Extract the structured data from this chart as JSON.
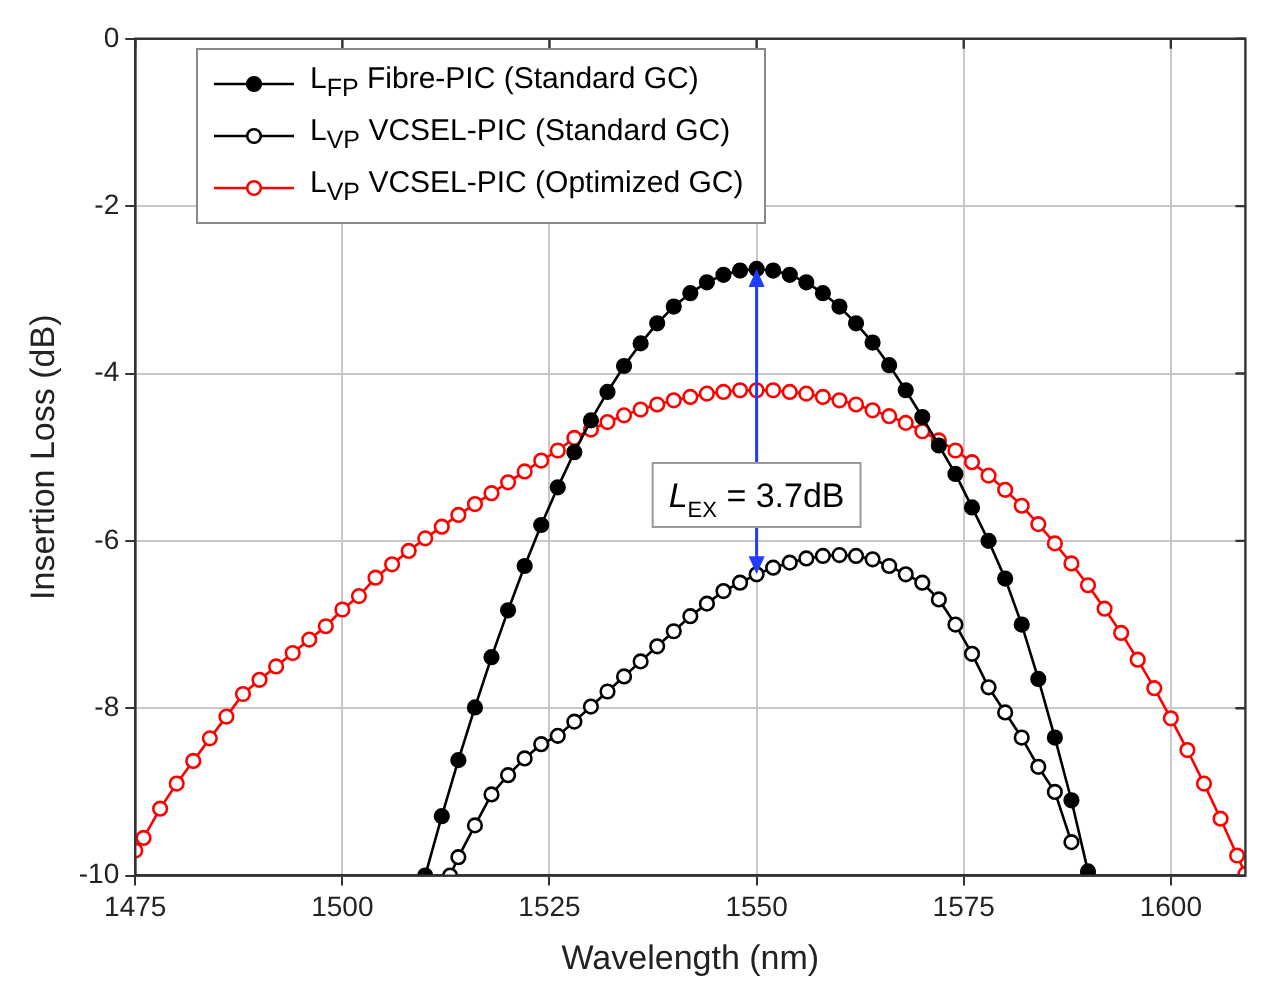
{
  "chart_data": {
    "type": "line",
    "xlabel": "Wavelength (nm)",
    "ylabel": "Insertion Loss (dB)",
    "xlim": [
      1475,
      1609
    ],
    "xticks": [
      1475,
      1500,
      1525,
      1550,
      1575,
      1600
    ],
    "ylim": [
      -10,
      0
    ],
    "yticks": [
      -10,
      -8,
      -6,
      -4,
      -2,
      0
    ],
    "grid": true,
    "legend": "top left",
    "marker": "circle",
    "line_style": "solid",
    "annotations": [
      {
        "text": "L$_{EX}$ = 3.7dB",
        "x": 1550,
        "y": -2.75
      }
    ],
    "series": [
      {
        "name": "L$_{FP}$ Fibre-PIC (Standard GC)",
        "color": "#000000",
        "x": [
          1510,
          1512,
          1514,
          1516,
          1518,
          1520,
          1522,
          1524,
          1526,
          1528,
          1530,
          1532,
          1534,
          1536,
          1538,
          1540,
          1542,
          1544,
          1546,
          1548,
          1550,
          1552,
          1554,
          1556,
          1558,
          1560,
          1562,
          1564,
          1566,
          1568,
          1570,
          1572,
          1574,
          1576,
          1578,
          1580,
          1582,
          1584,
          1586,
          1588,
          1590
        ],
        "values": [
          -10.0,
          -9.29,
          -8.62,
          -7.99,
          -7.39,
          -6.83,
          -6.3,
          -5.81,
          -5.36,
          -4.94,
          -4.56,
          -4.22,
          -3.91,
          -3.64,
          -3.4,
          -3.2,
          -3.04,
          -2.91,
          -2.82,
          -2.77,
          -2.75,
          -2.77,
          -2.82,
          -2.91,
          -3.04,
          -3.2,
          -3.4,
          -3.63,
          -3.9,
          -4.2,
          -4.52,
          -4.86,
          -5.2,
          -5.6,
          -6.0,
          -6.45,
          -7.0,
          -7.65,
          -8.35,
          -9.1,
          -9.95
        ]
      },
      {
        "name": "L$_{VP}$ VCSEL-PIC (Standard GC)",
        "color": "#000000",
        "x": [
          1513,
          1514,
          1516,
          1518,
          1520,
          1522,
          1524,
          1526,
          1528,
          1530,
          1532,
          1534,
          1536,
          1538,
          1540,
          1542,
          1544,
          1546,
          1548,
          1550,
          1552,
          1554,
          1556,
          1558,
          1560,
          1562,
          1564,
          1566,
          1568,
          1570,
          1572,
          1574,
          1576,
          1578,
          1580,
          1582,
          1584,
          1586,
          1588
        ],
        "values": [
          -10.0,
          -9.78,
          -9.4,
          -9.03,
          -8.8,
          -8.6,
          -8.43,
          -8.33,
          -8.16,
          -7.98,
          -7.8,
          -7.62,
          -7.44,
          -7.26,
          -7.08,
          -6.9,
          -6.75,
          -6.6,
          -6.5,
          -6.4,
          -6.32,
          -6.26,
          -6.21,
          -6.18,
          -6.17,
          -6.18,
          -6.22,
          -6.3,
          -6.4,
          -6.5,
          -6.7,
          -7.0,
          -7.35,
          -7.75,
          -8.05,
          -8.35,
          -8.7,
          -9.0,
          -9.6
        ]
      },
      {
        "name": "L$_{VP}$ VCSEL-PIC (Optimized GC)",
        "color": "#ff0000",
        "x": [
          1475,
          1476,
          1478,
          1480,
          1482,
          1484,
          1486,
          1488,
          1490,
          1492,
          1494,
          1496,
          1498,
          1500,
          1502,
          1504,
          1506,
          1508,
          1510,
          1512,
          1514,
          1516,
          1518,
          1520,
          1522,
          1524,
          1526,
          1528,
          1530,
          1532,
          1534,
          1536,
          1538,
          1540,
          1542,
          1544,
          1546,
          1548,
          1550,
          1552,
          1554,
          1556,
          1558,
          1560,
          1562,
          1564,
          1566,
          1568,
          1570,
          1572,
          1574,
          1576,
          1578,
          1580,
          1582,
          1584,
          1586,
          1588,
          1590,
          1592,
          1594,
          1596,
          1598,
          1600,
          1602,
          1604,
          1606,
          1608,
          1609
        ],
        "values": [
          -9.7,
          -9.55,
          -9.2,
          -8.9,
          -8.63,
          -8.36,
          -8.1,
          -7.83,
          -7.66,
          -7.5,
          -7.34,
          -7.18,
          -7.02,
          -6.82,
          -6.66,
          -6.44,
          -6.28,
          -6.12,
          -5.97,
          -5.83,
          -5.69,
          -5.56,
          -5.43,
          -5.3,
          -5.17,
          -5.04,
          -4.92,
          -4.77,
          -4.67,
          -4.58,
          -4.5,
          -4.43,
          -4.37,
          -4.32,
          -4.28,
          -4.24,
          -4.22,
          -4.2,
          -4.2,
          -4.2,
          -4.22,
          -4.24,
          -4.28,
          -4.32,
          -4.37,
          -4.44,
          -4.51,
          -4.59,
          -4.69,
          -4.8,
          -4.92,
          -5.06,
          -5.22,
          -5.39,
          -5.58,
          -5.8,
          -6.03,
          -6.27,
          -6.53,
          -6.81,
          -7.1,
          -7.42,
          -7.76,
          -8.12,
          -8.5,
          -8.9,
          -9.32,
          -9.76,
          -9.98
        ]
      }
    ]
  }
}
